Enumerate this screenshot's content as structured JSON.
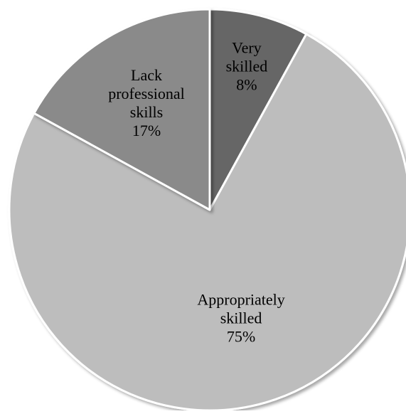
{
  "chart_data": {
    "type": "pie",
    "slices": [
      {
        "lines": [
          "Very",
          "skilled"
        ],
        "value": 8,
        "value_label": "8%",
        "color": "#666666"
      },
      {
        "lines": [
          "Appropriately",
          "skilled"
        ],
        "value": 75,
        "value_label": "75%",
        "color": "#bdbdbd"
      },
      {
        "lines": [
          "Lack",
          "professional",
          "skills"
        ],
        "value": 17,
        "value_label": "17%",
        "color": "#8a8a8a"
      }
    ],
    "start_angle_deg": 0,
    "direction": "clockwise",
    "legend": "none"
  }
}
